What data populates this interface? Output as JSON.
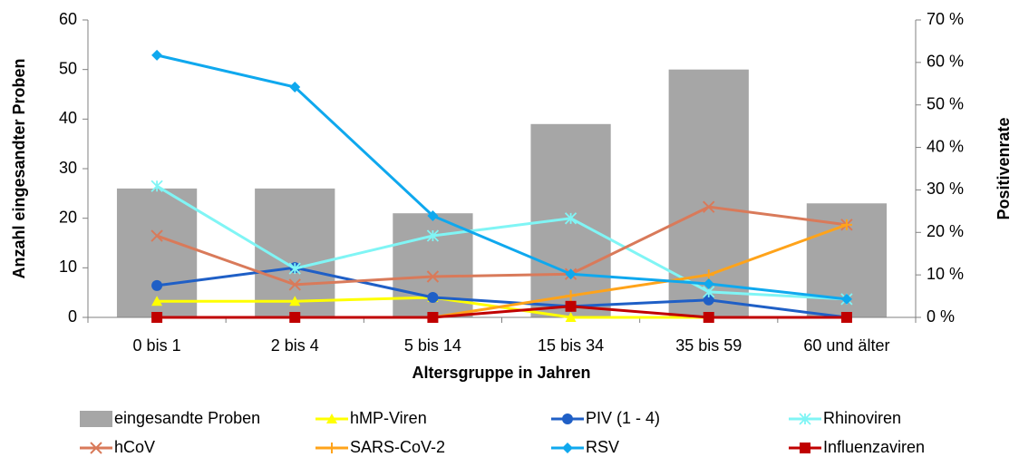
{
  "chart_data": {
    "type": "bar_line",
    "xlabel": "Altersgruppe in Jahren",
    "ylabel": "Anzahl eingesandter Proben",
    "y2label": "Positivenrate",
    "categories": [
      "0 bis 1",
      "2 bis 4",
      "5 bis 14",
      "15 bis 34",
      "35 bis 59",
      "60 und älter"
    ],
    "ylim": [
      0,
      60
    ],
    "yticks": [
      0,
      10,
      20,
      30,
      40,
      50,
      60
    ],
    "y2lim": [
      0,
      70
    ],
    "y2ticks": [
      {
        "value": 0,
        "label": "0 %"
      },
      {
        "value": 10,
        "label": "10 %"
      },
      {
        "value": 20,
        "label": "20 %"
      },
      {
        "value": 30,
        "label": "30 %"
      },
      {
        "value": 40,
        "label": "40 %"
      },
      {
        "value": 50,
        "label": "50 %"
      },
      {
        "value": 60,
        "label": "60 %"
      },
      {
        "value": 70,
        "label": "70 %"
      }
    ],
    "grid": false,
    "legend": "bottom",
    "series": [
      {
        "name": "eingesandte Proben",
        "type": "bar",
        "color": "#a6a6a6",
        "values": [
          26,
          26,
          21,
          39,
          50,
          23
        ]
      },
      {
        "name": "hMP-Viren",
        "type": "line",
        "marker": "triangle",
        "axis": "y2",
        "color": "#ffff00",
        "values": [
          3.8,
          3.8,
          4.7,
          0,
          0,
          0
        ]
      },
      {
        "name": "PIV (1 - 4)",
        "type": "line",
        "marker": "circle",
        "axis": "y2",
        "color": "#1f5fc6",
        "values": [
          7.5,
          11.7,
          4.7,
          2.6,
          4.1,
          0
        ]
      },
      {
        "name": "Rhinoviren",
        "type": "line",
        "marker": "star",
        "axis": "y2",
        "color": "#80f5f5",
        "values": [
          30.9,
          11.5,
          19.2,
          23.3,
          6.0,
          4.3
        ]
      },
      {
        "name": "hCoV",
        "type": "line",
        "marker": "x",
        "axis": "y2",
        "color": "#d97a5a",
        "values": [
          19.2,
          7.7,
          9.6,
          10.2,
          26.0,
          21.8
        ]
      },
      {
        "name": "SARS-CoV-2",
        "type": "line",
        "marker": "plus",
        "axis": "y2",
        "color": "#ffa31a",
        "values": [
          0,
          0,
          0,
          5.1,
          10.0,
          21.8
        ]
      },
      {
        "name": "RSV",
        "type": "line",
        "marker": "diamond",
        "axis": "y2",
        "color": "#0fa8ee",
        "values": [
          61.7,
          54.2,
          23.9,
          10.2,
          7.9,
          4.3
        ]
      },
      {
        "name": "Influenzaviren",
        "type": "line",
        "marker": "square",
        "axis": "y2",
        "color": "#c00000",
        "values": [
          0,
          0,
          0,
          2.6,
          0,
          0
        ]
      }
    ]
  }
}
